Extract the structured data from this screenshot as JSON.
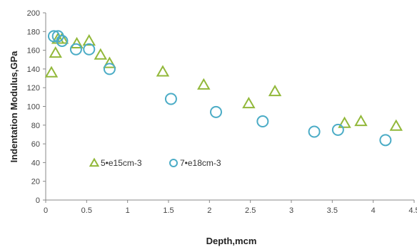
{
  "chart_data": {
    "type": "scatter",
    "title": "",
    "xlabel": "Depth,mcm",
    "ylabel": "Indentation Modulus,GPa",
    "xlim": [
      0,
      4.5
    ],
    "ylim": [
      0,
      200
    ],
    "xticks": [
      "0",
      "0.5",
      "1",
      "1.5",
      "2",
      "2.5",
      "3",
      "3.5",
      "4",
      "4.5"
    ],
    "xtick_values": [
      0,
      0.5,
      1,
      1.5,
      2,
      2.5,
      3,
      3.5,
      4,
      4.5
    ],
    "yticks": [
      "0",
      "20",
      "40",
      "60",
      "80",
      "100",
      "120",
      "140",
      "160",
      "180",
      "200"
    ],
    "ytick_values": [
      0,
      20,
      40,
      60,
      80,
      100,
      120,
      140,
      160,
      180,
      200
    ],
    "grid": false,
    "legend_position": "lower-left",
    "series": [
      {
        "name": "5•e15cm-3",
        "marker": "triangle",
        "color": "#92b83a",
        "x": [
          0.07,
          0.12,
          0.15,
          0.2,
          0.38,
          0.53,
          0.67,
          0.78,
          1.43,
          1.93,
          2.48,
          2.8,
          3.65,
          3.85,
          4.28
        ],
        "y": [
          136,
          157,
          172,
          172,
          167,
          170,
          155,
          146,
          137,
          123,
          103,
          116,
          82,
          84,
          79
        ]
      },
      {
        "name": "7•e18cm-3",
        "marker": "circle",
        "color": "#4bacc6",
        "x": [
          0.1,
          0.15,
          0.2,
          0.37,
          0.53,
          0.78,
          1.53,
          2.08,
          2.65,
          3.28,
          3.57,
          4.15
        ],
        "y": [
          175,
          175,
          170,
          161,
          161,
          140,
          108,
          94,
          84,
          73,
          75,
          64
        ]
      }
    ]
  }
}
